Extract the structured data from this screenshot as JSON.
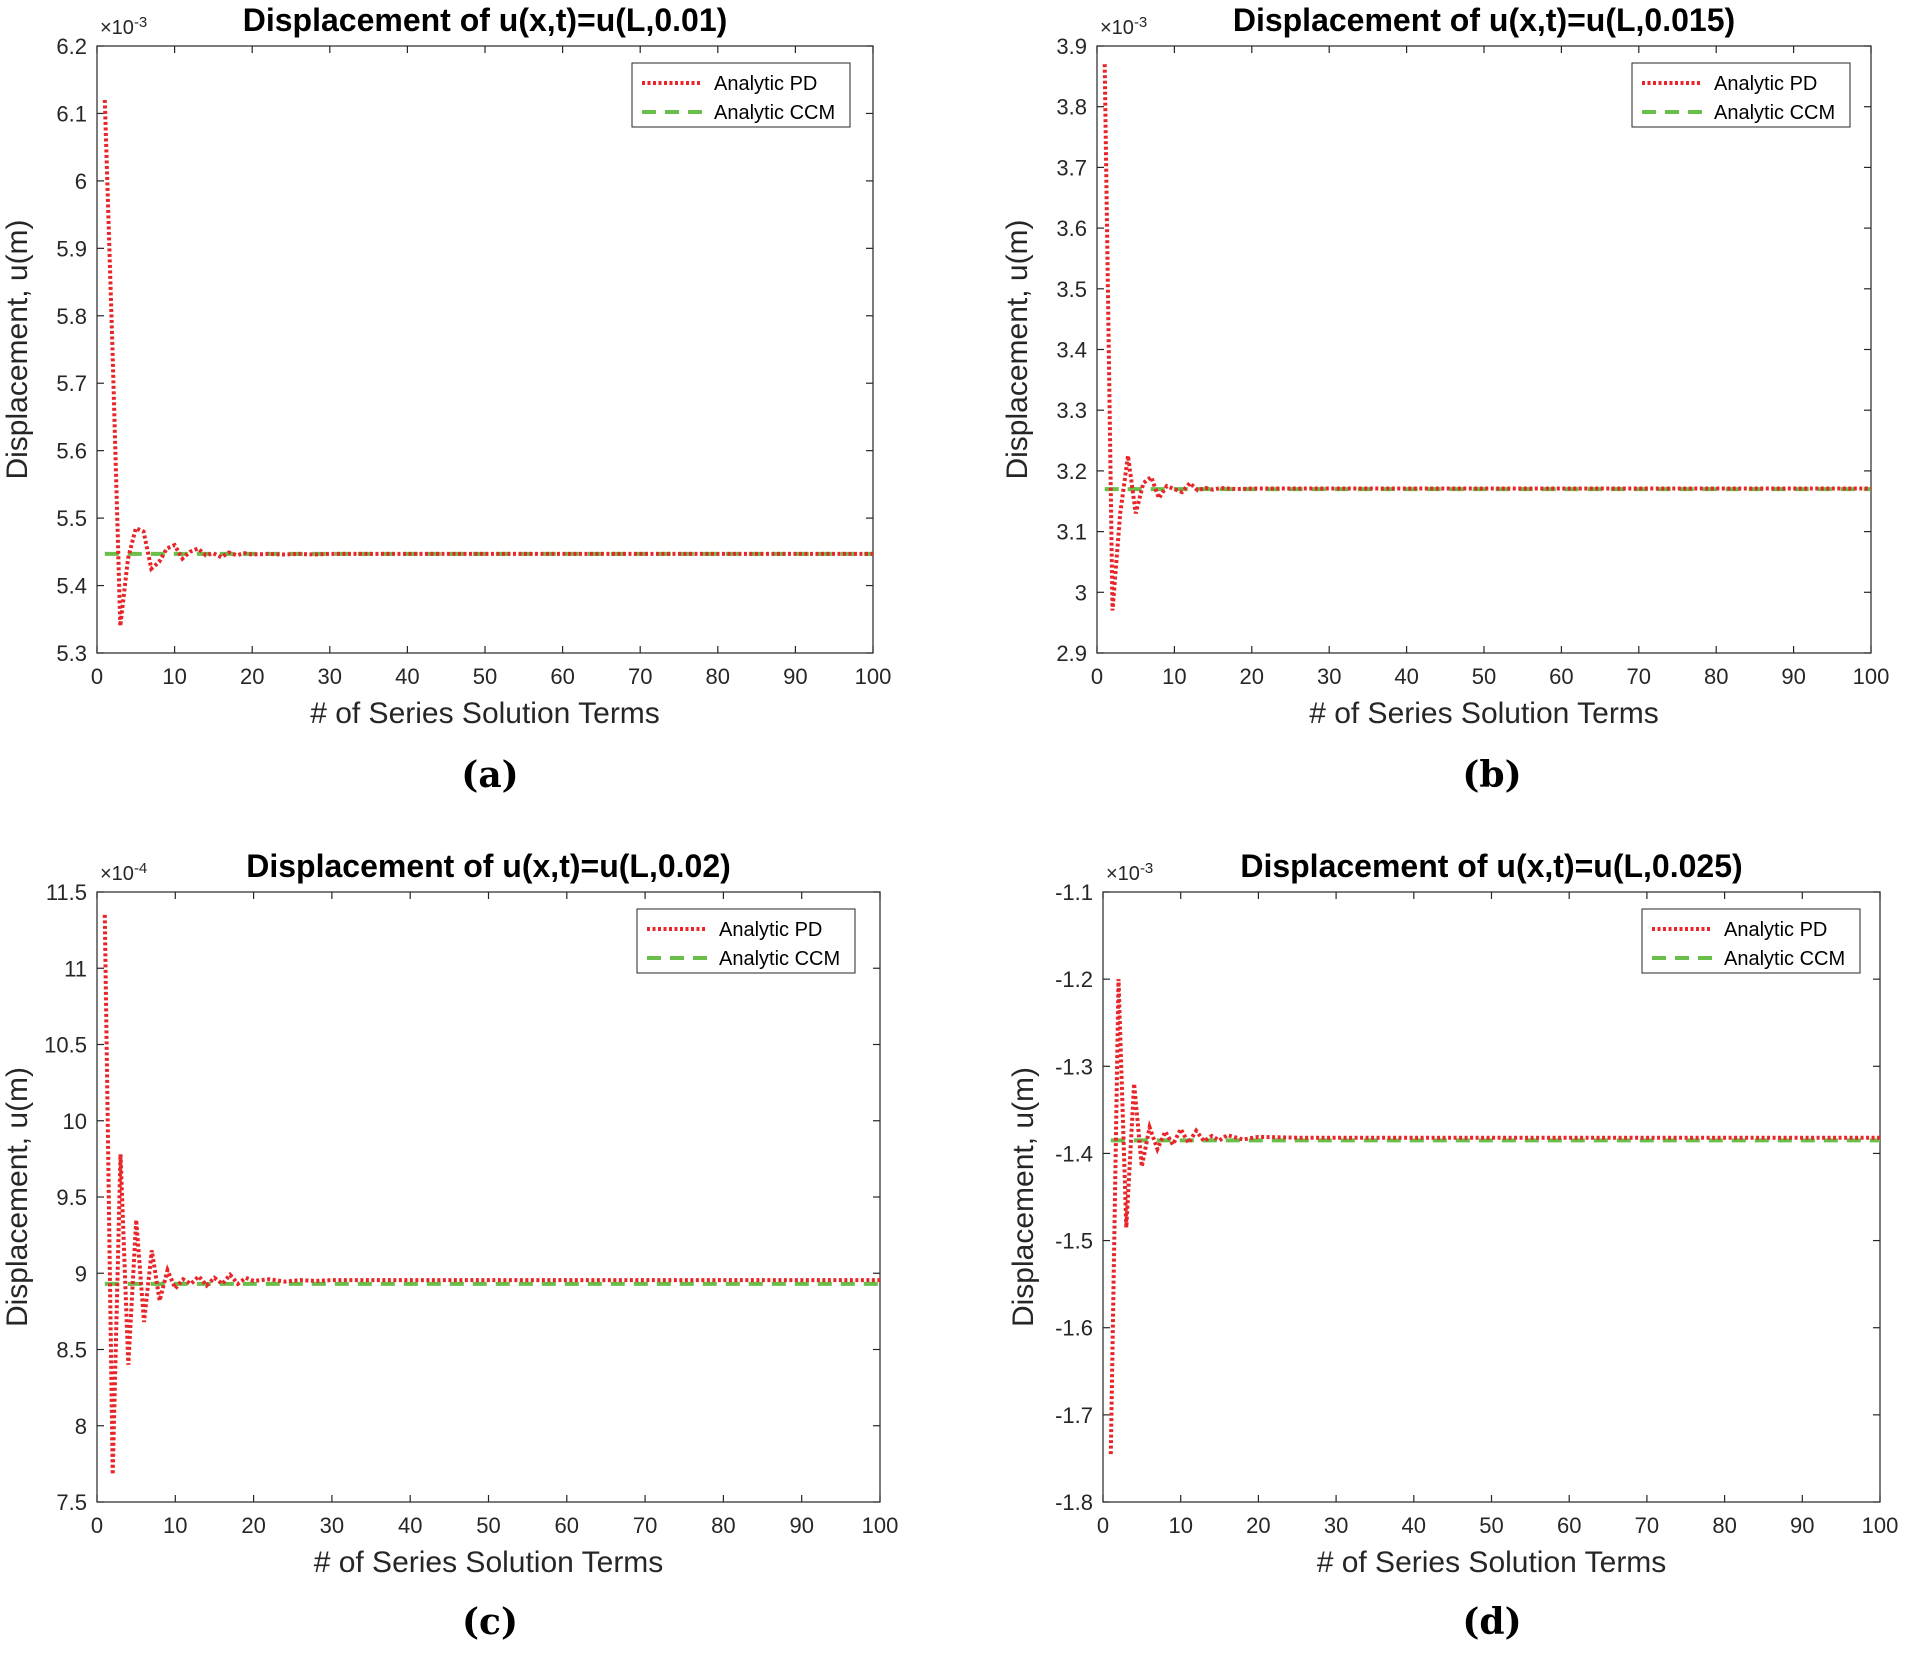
{
  "colors": {
    "pd": "#e8262a",
    "ccm": "#6abf4b",
    "axis": "#262626"
  },
  "chart_data": [
    {
      "type": "line",
      "panel": "(a)",
      "title": "Displacement of u(x,t)=u(L,0.01)",
      "xlabel": "# of Series Solution Terms",
      "ylabel": "Displacement, u(m)",
      "exponent": "×10",
      "exponent_power": "-3",
      "xlim": [
        0,
        100
      ],
      "ylim": [
        5.3,
        6.2
      ],
      "xticks": [
        0,
        10,
        20,
        30,
        40,
        50,
        60,
        70,
        80,
        90,
        100
      ],
      "xtick_labels": [
        "0",
        "10",
        "20",
        "30",
        "40",
        "50",
        "60",
        "70",
        "80",
        "90",
        "100"
      ],
      "yticks": [
        5.3,
        5.4,
        5.5,
        5.6,
        5.7,
        5.8,
        5.9,
        6.0,
        6.1,
        6.2
      ],
      "ytick_labels": [
        "5.3",
        "5.4",
        "5.5",
        "5.6",
        "5.7",
        "5.8",
        "5.9",
        "6",
        "6.1",
        "6.2"
      ],
      "legend": [
        "Analytic PD",
        "Analytic CCM"
      ],
      "series": [
        {
          "name": "Analytic PD",
          "style": "dotted",
          "x": [
            1,
            2,
            3,
            4,
            5,
            6,
            7,
            8,
            9,
            10,
            11,
            12,
            13,
            14,
            15,
            16,
            17,
            18,
            19,
            20,
            22,
            24,
            26,
            28,
            30,
            35,
            40,
            45,
            50,
            60,
            70,
            80,
            90,
            100
          ],
          "y": [
            6.12,
            5.75,
            5.34,
            5.44,
            5.485,
            5.48,
            5.425,
            5.435,
            5.455,
            5.46,
            5.44,
            5.45,
            5.455,
            5.445,
            5.448,
            5.442,
            5.449,
            5.445,
            5.448,
            5.446,
            5.447,
            5.446,
            5.447,
            5.446,
            5.447,
            5.447,
            5.447,
            5.447,
            5.447,
            5.447,
            5.447,
            5.447,
            5.447,
            5.447
          ]
        },
        {
          "name": "Analytic CCM",
          "style": "dashed",
          "x": [
            1,
            100
          ],
          "y": [
            5.447,
            5.447
          ]
        }
      ]
    },
    {
      "type": "line",
      "panel": "(b)",
      "title": "Displacement of u(x,t)=u(L,0.015)",
      "xlabel": "# of Series Solution Terms",
      "ylabel": "Displacement, u(m)",
      "exponent": "×10",
      "exponent_power": "-3",
      "xlim": [
        0,
        100
      ],
      "ylim": [
        2.9,
        3.9
      ],
      "xticks": [
        0,
        10,
        20,
        30,
        40,
        50,
        60,
        70,
        80,
        90,
        100
      ],
      "xtick_labels": [
        "0",
        "10",
        "20",
        "30",
        "40",
        "50",
        "60",
        "70",
        "80",
        "90",
        "100"
      ],
      "yticks": [
        2.9,
        3.0,
        3.1,
        3.2,
        3.3,
        3.4,
        3.5,
        3.6,
        3.7,
        3.8,
        3.9
      ],
      "ytick_labels": [
        "2.9",
        "3",
        "3.1",
        "3.2",
        "3.3",
        "3.4",
        "3.5",
        "3.6",
        "3.7",
        "3.8",
        "3.9"
      ],
      "legend": [
        "Analytic PD",
        "Analytic CCM"
      ],
      "series": [
        {
          "name": "Analytic PD",
          "style": "dotted",
          "x": [
            1,
            2,
            3,
            4,
            5,
            6,
            7,
            8,
            9,
            10,
            11,
            12,
            13,
            14,
            15,
            16,
            18,
            20,
            25,
            30,
            40,
            50,
            60,
            70,
            80,
            90,
            100
          ],
          "y": [
            3.87,
            2.97,
            3.13,
            3.225,
            3.13,
            3.18,
            3.19,
            3.155,
            3.175,
            3.17,
            3.165,
            3.18,
            3.168,
            3.172,
            3.169,
            3.172,
            3.17,
            3.171,
            3.171,
            3.171,
            3.171,
            3.171,
            3.171,
            3.171,
            3.171,
            3.171,
            3.171
          ]
        },
        {
          "name": "Analytic CCM",
          "style": "dashed",
          "x": [
            1,
            100
          ],
          "y": [
            3.17,
            3.17
          ]
        }
      ]
    },
    {
      "type": "line",
      "panel": "(c)",
      "title": "Displacement of u(x,t)=u(L,0.02)",
      "xlabel": "# of Series Solution Terms",
      "ylabel": "Displacement, u(m)",
      "exponent": "×10",
      "exponent_power": "-4",
      "xlim": [
        0,
        100
      ],
      "ylim": [
        7.5,
        11.5
      ],
      "xticks": [
        0,
        10,
        20,
        30,
        40,
        50,
        60,
        70,
        80,
        90,
        100
      ],
      "xtick_labels": [
        "0",
        "10",
        "20",
        "30",
        "40",
        "50",
        "60",
        "70",
        "80",
        "90",
        "100"
      ],
      "yticks": [
        7.5,
        8.0,
        8.5,
        9.0,
        9.5,
        10.0,
        10.5,
        11.0,
        11.5
      ],
      "ytick_labels": [
        "7.5",
        "8",
        "8.5",
        "9",
        "9.5",
        "10",
        "10.5",
        "11",
        "11.5"
      ],
      "legend": [
        "Analytic PD",
        "Analytic CCM"
      ],
      "series": [
        {
          "name": "Analytic PD",
          "style": "dotted",
          "x": [
            1,
            2,
            3,
            4,
            5,
            6,
            7,
            8,
            9,
            10,
            11,
            12,
            13,
            14,
            15,
            16,
            17,
            18,
            19,
            20,
            22,
            24,
            26,
            28,
            30,
            40,
            50,
            60,
            70,
            80,
            90,
            100
          ],
          "y": [
            11.35,
            7.68,
            9.78,
            8.4,
            9.35,
            8.68,
            9.15,
            8.82,
            9.02,
            8.9,
            8.96,
            8.93,
            8.98,
            8.92,
            8.97,
            8.93,
            8.99,
            8.93,
            8.97,
            8.95,
            8.96,
            8.945,
            8.955,
            8.95,
            8.955,
            8.955,
            8.955,
            8.955,
            8.955,
            8.955,
            8.955,
            8.955
          ]
        },
        {
          "name": "Analytic CCM",
          "style": "dashed",
          "x": [
            1,
            100
          ],
          "y": [
            8.93,
            8.93
          ]
        }
      ]
    },
    {
      "type": "line",
      "panel": "(d)",
      "title": "Displacement of u(x,t)=u(L,0.025)",
      "xlabel": "# of Series Solution Terms",
      "ylabel": "Displacement, u(m)",
      "exponent": "×10",
      "exponent_power": "-3",
      "xlim": [
        0,
        100
      ],
      "ylim": [
        -1.8,
        -1.1
      ],
      "xticks": [
        0,
        10,
        20,
        30,
        40,
        50,
        60,
        70,
        80,
        90,
        100
      ],
      "xtick_labels": [
        "0",
        "10",
        "20",
        "30",
        "40",
        "50",
        "60",
        "70",
        "80",
        "90",
        "100"
      ],
      "yticks": [
        -1.8,
        -1.7,
        -1.6,
        -1.5,
        -1.4,
        -1.3,
        -1.2,
        -1.1
      ],
      "ytick_labels": [
        "-1.8",
        "-1.7",
        "-1.6",
        "-1.5",
        "-1.4",
        "-1.3",
        "-1.2",
        "-1.1"
      ],
      "legend": [
        "Analytic PD",
        "Analytic CCM"
      ],
      "series": [
        {
          "name": "Analytic PD",
          "style": "dotted",
          "x": [
            1,
            2,
            3,
            4,
            5,
            6,
            7,
            8,
            9,
            10,
            11,
            12,
            13,
            14,
            15,
            16,
            18,
            20,
            25,
            30,
            40,
            50,
            60,
            70,
            80,
            90,
            100
          ],
          "y": [
            -1.745,
            -1.2,
            -1.485,
            -1.32,
            -1.415,
            -1.37,
            -1.395,
            -1.375,
            -1.39,
            -1.372,
            -1.388,
            -1.374,
            -1.386,
            -1.38,
            -1.385,
            -1.379,
            -1.384,
            -1.381,
            -1.382,
            -1.382,
            -1.382,
            -1.382,
            -1.382,
            -1.382,
            -1.382,
            -1.382,
            -1.382
          ]
        },
        {
          "name": "Analytic CCM",
          "style": "dashed",
          "x": [
            1,
            100
          ],
          "y": [
            -1.385,
            -1.385
          ]
        }
      ]
    }
  ]
}
